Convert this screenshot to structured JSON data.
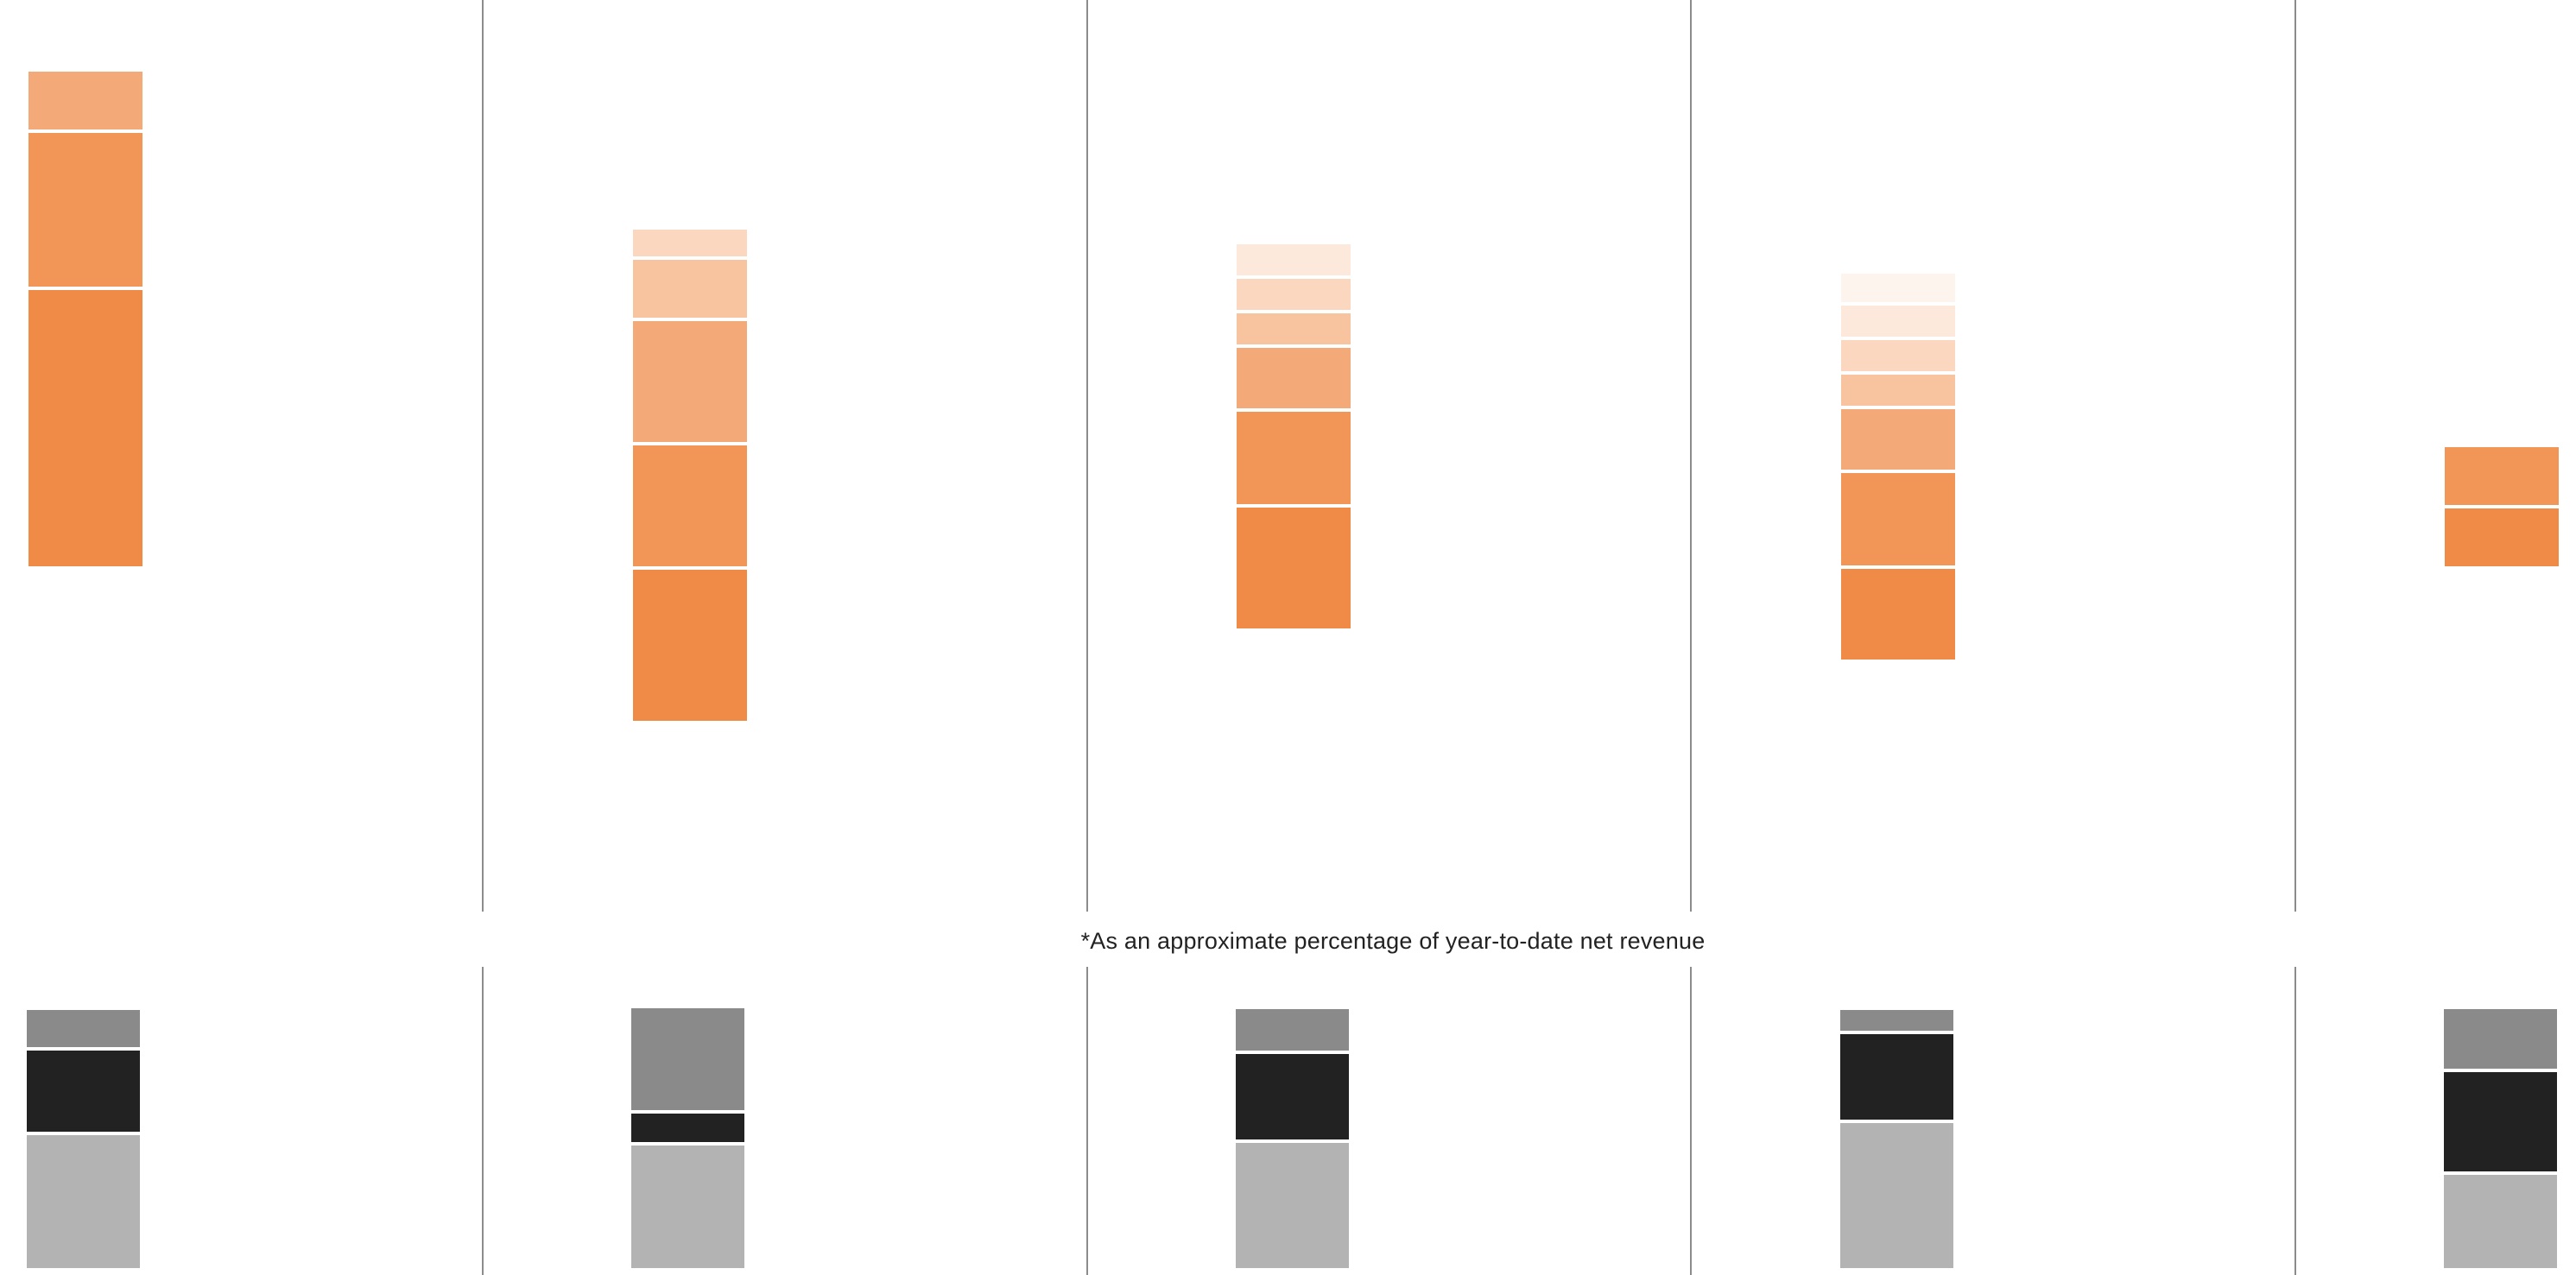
{
  "footnote": "*As an approximate percentage of year-to-date net revenue",
  "chart_data": [
    {
      "type": "bar",
      "stacked": true,
      "title": "",
      "xlabel": "",
      "ylabel": "",
      "categories": [
        "",
        "",
        "",
        "",
        ""
      ],
      "series": [
        {
          "color": "#f08a47",
          "values": [
            320,
            175,
            140,
            105,
            67
          ]
        },
        {
          "color": "#f29658",
          "values": [
            178,
            140,
            107,
            107,
            67
          ]
        },
        {
          "color": "#f4aa78",
          "values": [
            67,
            140,
            70,
            70,
            0
          ]
        },
        {
          "color": "#f8c39f",
          "values": [
            0,
            67,
            36,
            36,
            0
          ]
        },
        {
          "color": "#fbd7bf",
          "values": [
            0,
            31,
            36,
            36,
            0
          ]
        },
        {
          "color": "#fde9dc",
          "values": [
            0,
            0,
            36,
            36,
            0
          ]
        },
        {
          "color": "#fef4ee",
          "values": [
            0,
            0,
            0,
            33,
            0
          ]
        }
      ],
      "grid": false,
      "legend": "none"
    },
    {
      "type": "bar",
      "stacked": true,
      "title": "",
      "xlabel": "",
      "ylabel": "",
      "categories": [
        "",
        "",
        "",
        "",
        ""
      ],
      "series": [
        {
          "color": "#b3b3b3",
          "values": [
            154,
            142,
            145,
            168,
            108
          ]
        },
        {
          "color": "#222223",
          "values": [
            94,
            33,
            99,
            99,
            115
          ]
        },
        {
          "color": "#8a8a8a",
          "values": [
            43,
            118,
            48,
            24,
            69
          ]
        }
      ],
      "grid": false,
      "legend": "none"
    }
  ]
}
